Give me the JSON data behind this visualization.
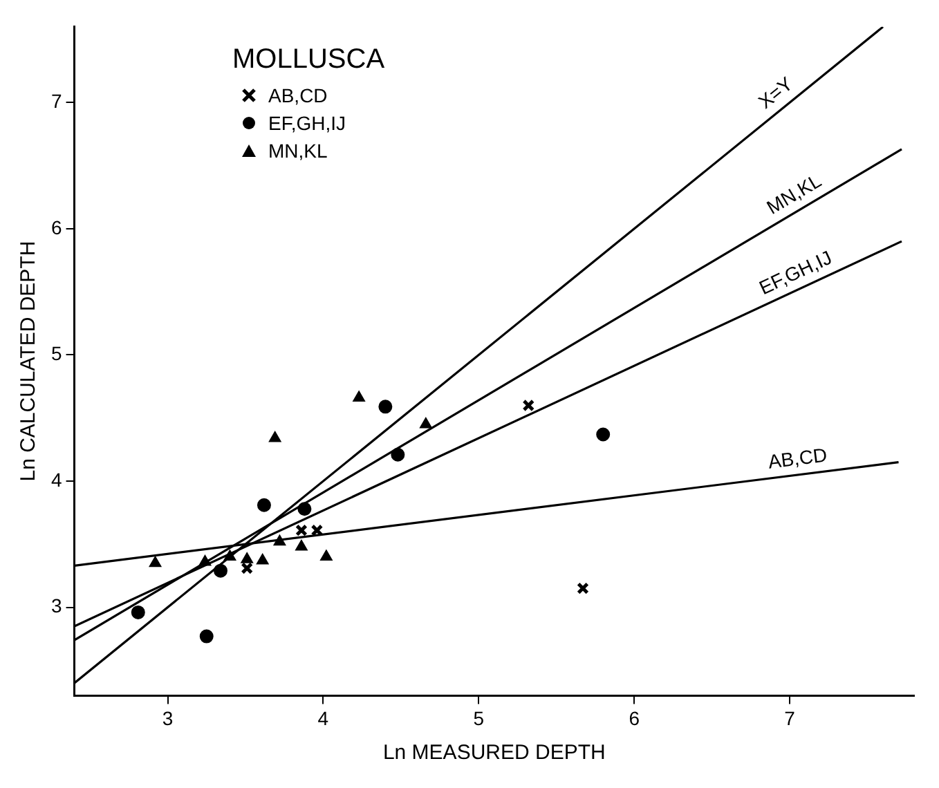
{
  "chart_data": {
    "type": "scatter",
    "xlabel": "Ln MEASURED DEPTH",
    "ylabel": "Ln CALCULATED DEPTH",
    "legend_title": "MOLLUSCA",
    "legend": "top left",
    "grid": false,
    "xlim": [
      2.4,
      7.8
    ],
    "xticks": [
      3,
      4,
      5,
      6,
      7
    ],
    "ylim": [
      2.3,
      7.6
    ],
    "yticks": [
      3,
      4,
      5,
      6,
      7
    ],
    "series": [
      {
        "name": "AB,CD",
        "color": "#000000",
        "marker": "cross",
        "x": [
          3.51,
          3.86,
          3.96,
          5.32,
          5.67
        ],
        "values": [
          3.31,
          3.61,
          3.61,
          4.6,
          3.15
        ]
      },
      {
        "name": "EF,GH,IJ",
        "color": "#000000",
        "marker": "circle",
        "x": [
          2.81,
          3.25,
          3.34,
          3.62,
          3.88,
          4.4,
          4.48,
          5.8
        ],
        "values": [
          2.96,
          2.77,
          3.29,
          3.81,
          3.78,
          4.59,
          4.21,
          4.37
        ]
      },
      {
        "name": "MN,KL",
        "color": "#000000",
        "marker": "triangle",
        "x": [
          2.92,
          3.24,
          3.4,
          3.51,
          3.61,
          3.69,
          3.72,
          3.86,
          4.02,
          4.23,
          4.66
        ],
        "values": [
          3.35,
          3.36,
          3.4,
          3.38,
          3.37,
          4.34,
          3.52,
          3.48,
          3.4,
          4.66,
          4.45
        ]
      },
      {
        "name": "X=Y",
        "type": "line",
        "color": "#000000",
        "marker": "none",
        "x": [
          2.4,
          7.6
        ],
        "values": [
          2.4,
          7.6
        ]
      },
      {
        "name": "MN,KL",
        "type": "line",
        "color": "#000000",
        "marker": "none",
        "x": [
          2.4,
          7.72
        ],
        "values": [
          2.74,
          6.63
        ]
      },
      {
        "name": "EF,GH,IJ",
        "type": "line",
        "color": "#000000",
        "marker": "none",
        "x": [
          2.4,
          7.72
        ],
        "values": [
          2.85,
          5.9
        ]
      },
      {
        "name": "AB,CD",
        "type": "line",
        "color": "#000000",
        "marker": "none",
        "x": [
          2.4,
          7.7
        ],
        "values": [
          3.33,
          4.15
        ]
      }
    ]
  }
}
